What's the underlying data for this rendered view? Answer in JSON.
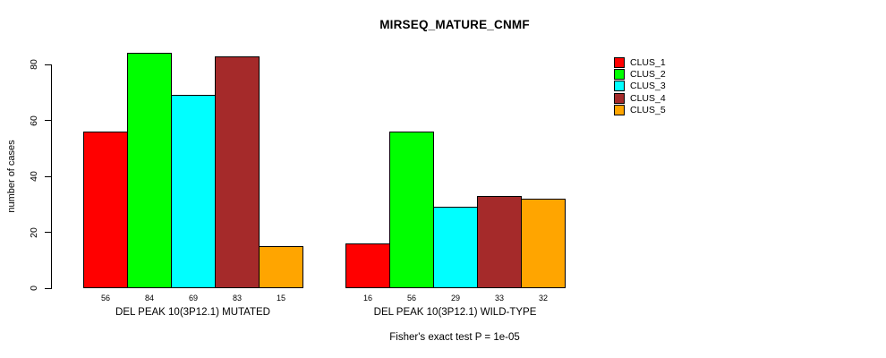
{
  "title": "MIRSEQ_MATURE_CNMF",
  "footer": "Fisher's exact test P = 1e-05",
  "legend": {
    "items": [
      {
        "label": "CLUS_1",
        "color": "#FF0000"
      },
      {
        "label": "CLUS_2",
        "color": "#00FF00"
      },
      {
        "label": "CLUS_3",
        "color": "#00FFFF"
      },
      {
        "label": "CLUS_4",
        "color": "#A52A2A"
      },
      {
        "label": "CLUS_5",
        "color": "#FFA500"
      }
    ]
  },
  "chart_data": {
    "type": "bar",
    "title": "MIRSEQ_MATURE_CNMF",
    "xlabel": "",
    "ylabel": "number of cases",
    "ylim": [
      0,
      88
    ],
    "yticks": [
      0,
      20,
      40,
      60,
      80
    ],
    "grid": false,
    "legend_position": "right",
    "bar_value_labels": true,
    "categories": [
      "DEL PEAK 10(3P12.1) MUTATED",
      "DEL PEAK 10(3P12.1) WILD-TYPE"
    ],
    "series": [
      {
        "name": "CLUS_1",
        "color": "#FF0000",
        "values": [
          56,
          16
        ]
      },
      {
        "name": "CLUS_2",
        "color": "#00FF00",
        "values": [
          84,
          56
        ]
      },
      {
        "name": "CLUS_3",
        "color": "#00FFFF",
        "values": [
          69,
          29
        ]
      },
      {
        "name": "CLUS_4",
        "color": "#A52A2A",
        "values": [
          83,
          33
        ]
      },
      {
        "name": "CLUS_5",
        "color": "#FFA500",
        "values": [
          15,
          32
        ]
      }
    ],
    "annotation": "Fisher's exact test P = 1e-05"
  }
}
